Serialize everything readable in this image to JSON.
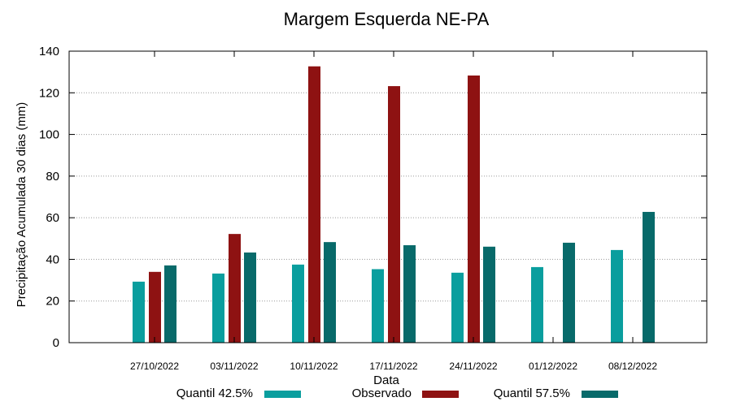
{
  "chart_data": {
    "type": "bar",
    "title": "Margem Esquerda NE-PA",
    "xlabel": "Data",
    "ylabel": "Precipitação Acumulada 30 dias (mm)",
    "ylim": [
      0,
      140
    ],
    "yticks": [
      0,
      20,
      40,
      60,
      80,
      100,
      120,
      140
    ],
    "grid": true,
    "legend_position": "bottom",
    "categories": [
      "27/10/2022",
      "03/11/2022",
      "10/11/2022",
      "17/11/2022",
      "24/11/2022",
      "01/12/2022",
      "08/12/2022"
    ],
    "series": [
      {
        "name": "Quantil 42.5%",
        "color": "#0a9e9e",
        "values": [
          29.3,
          33.2,
          37.5,
          35.3,
          33.6,
          36.3,
          44.5
        ]
      },
      {
        "name": "Observado",
        "color": "#8e1212",
        "values": [
          34,
          52.2,
          132.7,
          123.2,
          128.3,
          null,
          null
        ]
      },
      {
        "name": "Quantil 57.5%",
        "color": "#086a6a",
        "values": [
          37.1,
          43.3,
          48.3,
          46.8,
          46.1,
          48,
          62.8
        ]
      }
    ]
  }
}
